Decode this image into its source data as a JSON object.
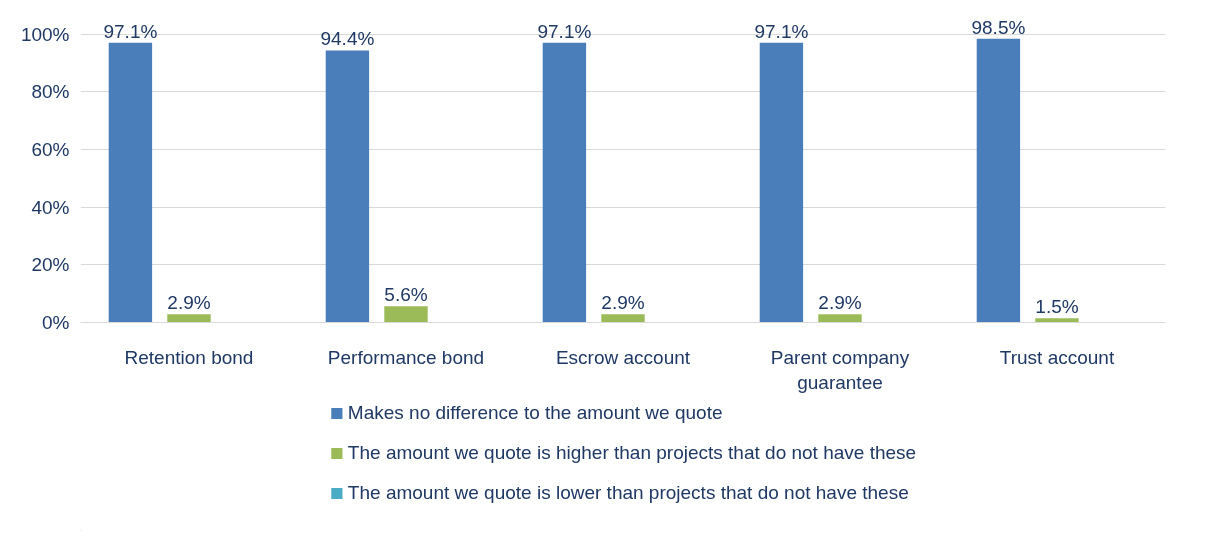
{
  "chart_data": {
    "type": "bar",
    "categories": [
      "Retention bond",
      "Performance bond",
      "Escrow account",
      "Parent company guarantee",
      "Trust account"
    ],
    "series": [
      {
        "name": "Makes no difference to the amount we quote",
        "color": "#4a7ebb",
        "values": [
          97.1,
          94.4,
          97.1,
          97.1,
          98.5
        ],
        "value_labels": [
          "97.1%",
          "94.4%",
          "97.1%",
          "97.1%",
          "98.5%"
        ]
      },
      {
        "name": "The amount we quote is higher than projects that do not have these",
        "color": "#9bbb59",
        "values": [
          2.9,
          5.6,
          2.9,
          2.9,
          1.5
        ],
        "value_labels": [
          "2.9%",
          "5.6%",
          "2.9%",
          "2.9%",
          "1.5%"
        ]
      },
      {
        "name": "The amount we quote is lower than projects that do not have these",
        "color": "#4bacc6",
        "values": [
          0,
          0,
          0,
          0,
          0
        ],
        "value_labels": [
          null,
          null,
          null,
          null,
          null
        ]
      }
    ],
    "ylim": [
      0,
      100
    ],
    "yticks": [
      {
        "value": 0,
        "label": "0%"
      },
      {
        "value": 20,
        "label": "20%"
      },
      {
        "value": 40,
        "label": "40%"
      },
      {
        "value": 60,
        "label": "60%"
      },
      {
        "value": 80,
        "label": "80%"
      },
      {
        "value": 100,
        "label": "100%"
      }
    ],
    "grid": "y",
    "legend": "bottom"
  }
}
